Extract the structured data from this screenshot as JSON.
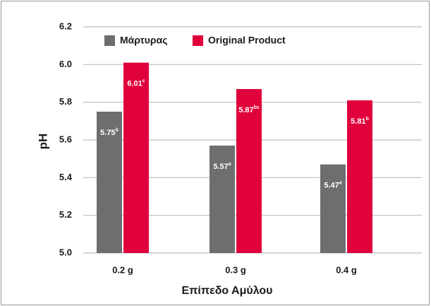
{
  "chart_data": {
    "type": "bar",
    "categories": [
      "0.2 g",
      "0.3 g",
      "0.4 g"
    ],
    "series": [
      {
        "name": "Μάρτυρας",
        "color": "#6d6e70",
        "values": [
          5.75,
          5.57,
          5.47
        ],
        "value_labels": [
          "5.75",
          "5.57",
          "5.47"
        ],
        "letters": [
          "b",
          "a",
          "a"
        ]
      },
      {
        "name": "Original Product",
        "color": "#e0003b",
        "values": [
          6.01,
          5.87,
          5.81
        ],
        "value_labels": [
          "6.01",
          "5.87",
          "5.81"
        ],
        "letters": [
          "c",
          "bc",
          "b"
        ]
      }
    ],
    "y_label": "pH",
    "x_label": "Επίπεδο Αμύλου",
    "ylim": [
      5.0,
      6.2
    ],
    "yticks": [
      {
        "value": 5.0,
        "label": "5.0"
      },
      5.2,
      5.4,
      5.6,
      5.8,
      {
        "value": 6.0,
        "label": "6.0"
      },
      6.2
    ],
    "grid": true,
    "legend": "top-left"
  }
}
